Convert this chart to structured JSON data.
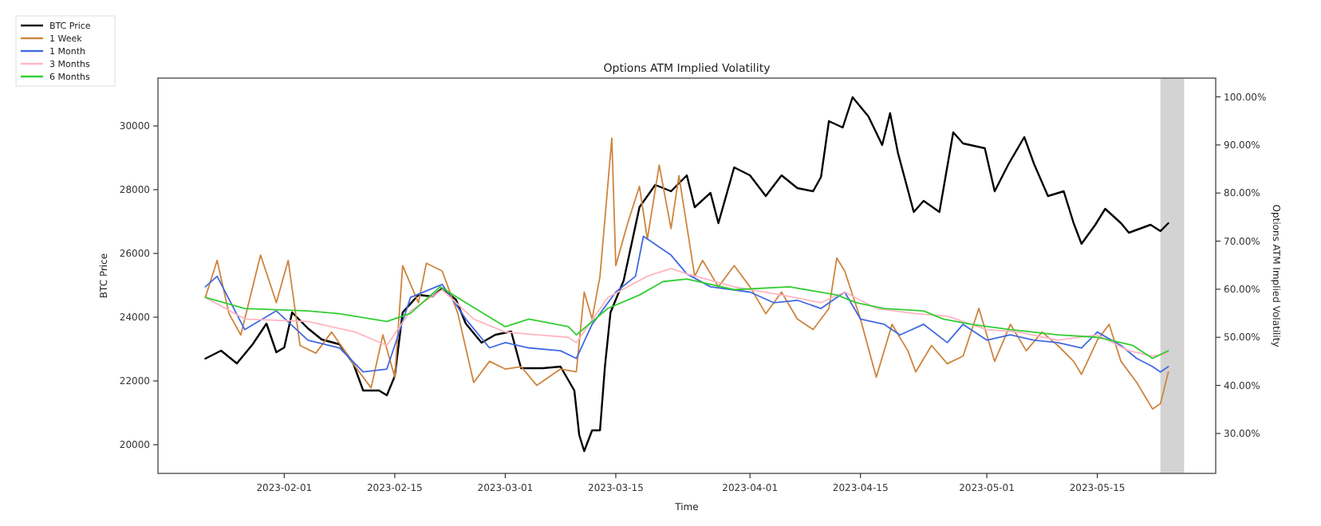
{
  "chart_data": {
    "type": "line",
    "title": "Options ATM Implied Volatility",
    "xlabel": "Time",
    "ylabel": "BTC Price",
    "y2label": "Options ATM Implied Volatility",
    "xlim": [
      "2023-01-16",
      "2023-05-30"
    ],
    "xticks": [
      "2023-02-01",
      "2023-02-15",
      "2023-03-01",
      "2023-03-15",
      "2023-04-01",
      "2023-04-15",
      "2023-05-01",
      "2023-05-15"
    ],
    "ylim": [
      19100,
      31500
    ],
    "yticks": [
      20000,
      22000,
      24000,
      26000,
      28000,
      30000
    ],
    "y2lim": [
      21.7,
      103.9
    ],
    "y2ticks": [
      {
        "value": 30,
        "label": "30.00%"
      },
      {
        "value": 40,
        "label": "40.00%"
      },
      {
        "value": 50,
        "label": "50.00%"
      },
      {
        "value": 60,
        "label": "60.00%"
      },
      {
        "value": 70,
        "label": "70.00%"
      },
      {
        "value": 80,
        "label": "80.00%"
      },
      {
        "value": 90,
        "label": "90.00%"
      },
      {
        "value": 100,
        "label": "100.00%"
      }
    ],
    "legend": "top left",
    "grid": false,
    "line_style": "solid",
    "marker": "none",
    "bands": [
      {
        "axis": "x",
        "from": "2023-05-23",
        "to": "2023-05-26",
        "color": "#d3d3d3"
      }
    ],
    "series": [
      {
        "name": "BTC Price",
        "color": "#000000",
        "x": [
          "2023-01-22",
          "2023-01-24",
          "2023-01-26",
          "2023-01-28",
          "2023-01-29T18:00",
          "2023-01-31",
          "2023-02-01",
          "2023-02-02",
          "2023-02-04",
          "2023-02-05T18:00",
          "2023-02-08",
          "2023-02-09T18:00",
          "2023-02-11",
          "2023-02-13",
          "2023-02-14",
          "2023-02-15",
          "2023-02-16",
          "2023-02-18",
          "2023-02-19T18:00",
          "2023-02-21",
          "2023-02-22T18:00",
          "2023-02-24",
          "2023-02-26",
          "2023-02-27T18:00",
          "2023-03-01T18:00",
          "2023-03-03",
          "2023-03-05T18:00",
          "2023-03-08",
          "2023-03-09T18:00",
          "2023-03-10T09:00",
          "2023-03-11",
          "2023-03-12",
          "2023-03-13",
          "2023-03-13T15:00",
          "2023-03-14T08:00",
          "2023-03-16",
          "2023-03-18",
          "2023-03-20",
          "2023-03-22",
          "2023-03-24",
          "2023-03-25",
          "2023-03-27",
          "2023-03-28",
          "2023-03-30",
          "2023-04-01",
          "2023-04-03",
          "2023-04-05",
          "2023-04-07",
          "2023-04-09",
          "2023-04-10",
          "2023-04-11",
          "2023-04-12T18:00",
          "2023-04-14",
          "2023-04-16",
          "2023-04-17T18:00",
          "2023-04-18T18:00",
          "2023-04-19T18:00",
          "2023-04-21T18:00",
          "2023-04-23",
          "2023-04-25",
          "2023-04-26T18:00",
          "2023-04-28",
          "2023-04-30T18:00",
          "2023-05-02",
          "2023-05-03T18:00",
          "2023-05-05T18:00",
          "2023-05-07",
          "2023-05-08T18:00",
          "2023-05-10T18:00",
          "2023-05-12",
          "2023-05-13",
          "2023-05-14T18:00",
          "2023-05-16",
          "2023-05-18",
          "2023-05-19",
          "2023-05-21T18:00",
          "2023-05-23",
          "2023-05-24"
        ],
        "values": [
          22700,
          22950,
          22550,
          23150,
          23800,
          22900,
          23050,
          24150,
          23650,
          23300,
          23150,
          22550,
          21700,
          21700,
          21550,
          22150,
          24150,
          24700,
          24650,
          24900,
          24550,
          23800,
          23200,
          23450,
          23550,
          22400,
          22400,
          22450,
          21700,
          20300,
          19800,
          20450,
          20450,
          22450,
          24150,
          25150,
          27450,
          28150,
          27950,
          28450,
          27450,
          27900,
          26950,
          28700,
          28450,
          27800,
          28450,
          28050,
          27950,
          28400,
          30150,
          29950,
          30900,
          30300,
          29400,
          30400,
          29150,
          27300,
          27650,
          27300,
          29800,
          29450,
          29300,
          27950,
          28800,
          29650,
          28800,
          27800,
          27950,
          26950,
          26300,
          26900,
          27400,
          26950,
          26650,
          26900,
          26700,
          26950
        ]
      },
      {
        "name": "1 Week",
        "color": "#cd853f",
        "axis": "y2",
        "x": [
          "2023-01-22",
          "2023-01-23T12:00",
          "2023-01-25",
          "2023-01-26T12:00",
          "2023-01-29",
          "2023-01-31",
          "2023-02-01T12:00",
          "2023-02-03",
          "2023-02-05",
          "2023-02-07",
          "2023-02-10",
          "2023-02-12",
          "2023-02-13T12:00",
          "2023-02-15",
          "2023-02-16",
          "2023-02-18",
          "2023-02-19",
          "2023-02-21",
          "2023-02-23",
          "2023-02-25",
          "2023-02-27",
          "2023-03-01",
          "2023-03-03",
          "2023-03-05",
          "2023-03-08",
          "2023-03-10",
          "2023-03-11",
          "2023-03-12",
          "2023-03-13",
          "2023-03-14T12:00",
          "2023-03-15",
          "2023-03-16T12:00",
          "2023-03-18",
          "2023-03-19",
          "2023-03-20T12:00",
          "2023-03-22",
          "2023-03-23",
          "2023-03-25",
          "2023-03-26",
          "2023-03-28",
          "2023-03-30",
          "2023-04-01",
          "2023-04-03",
          "2023-04-05",
          "2023-04-07",
          "2023-04-09",
          "2023-04-11",
          "2023-04-12",
          "2023-04-13",
          "2023-04-15",
          "2023-04-17",
          "2023-04-19",
          "2023-04-21",
          "2023-04-22",
          "2023-04-24",
          "2023-04-26",
          "2023-04-28",
          "2023-04-30",
          "2023-05-02",
          "2023-05-04",
          "2023-05-06",
          "2023-05-08",
          "2023-05-10",
          "2023-05-12",
          "2023-05-13",
          "2023-05-15",
          "2023-05-16T12:00",
          "2023-05-18",
          "2023-05-20",
          "2023-05-22",
          "2023-05-23",
          "2023-05-24"
        ],
        "values": [
          58.3,
          66,
          54.9,
          50.5,
          67.1,
          57.2,
          66,
          48.3,
          46.7,
          51.1,
          43.9,
          39.5,
          50.5,
          41.7,
          64.9,
          57.2,
          65.4,
          63.8,
          54.9,
          40.6,
          45,
          43.4,
          43.9,
          40,
          43.4,
          42.8,
          59.4,
          53.8,
          62.7,
          91.4,
          64.9,
          73.7,
          81.4,
          70.4,
          85.8,
          72.6,
          83.6,
          62.7,
          66,
          60.5,
          64.9,
          60.5,
          54.9,
          59.4,
          53.8,
          51.6,
          56,
          66.5,
          63.8,
          53.8,
          41.7,
          52.7,
          47.2,
          42.8,
          48.3,
          44.5,
          46.1,
          56,
          45,
          52.7,
          47.2,
          51.1,
          48.3,
          45,
          42.3,
          49.4,
          52.7,
          45,
          40.6,
          35.1,
          36.2,
          42.8
        ]
      },
      {
        "name": "1 Month",
        "color": "#4169e1",
        "axis": "y2",
        "x": [
          "2023-01-22",
          "2023-01-23T12:00",
          "2023-01-27",
          "2023-01-31",
          "2023-02-04",
          "2023-02-08",
          "2023-02-11",
          "2023-02-14",
          "2023-02-15",
          "2023-02-17",
          "2023-02-21",
          "2023-02-24",
          "2023-02-27",
          "2023-03-01",
          "2023-03-04",
          "2023-03-08",
          "2023-03-10",
          "2023-03-12",
          "2023-03-15",
          "2023-03-17T12:00",
          "2023-03-18T12:00",
          "2023-03-22",
          "2023-03-24",
          "2023-03-27",
          "2023-04-01",
          "2023-04-04",
          "2023-04-07",
          "2023-04-10",
          "2023-04-13",
          "2023-04-15",
          "2023-04-18",
          "2023-04-20",
          "2023-04-23",
          "2023-04-26",
          "2023-04-28",
          "2023-05-01",
          "2023-05-04",
          "2023-05-07",
          "2023-05-10",
          "2023-05-13",
          "2023-05-15",
          "2023-05-18",
          "2023-05-20",
          "2023-05-22",
          "2023-05-23",
          "2023-05-24"
        ],
        "values": [
          60.5,
          62.7,
          51.6,
          55.5,
          49.4,
          47.8,
          42.8,
          43.4,
          48.3,
          58.3,
          61,
          53.8,
          47.8,
          48.9,
          47.8,
          47.2,
          45.6,
          52.7,
          59.4,
          62.7,
          71,
          67.1,
          63.2,
          60.5,
          59.4,
          57.2,
          57.7,
          56,
          59.4,
          53.8,
          52.7,
          50.5,
          52.7,
          48.9,
          52.7,
          49.4,
          50.5,
          49.4,
          48.9,
          47.8,
          51.1,
          48.3,
          45.6,
          43.9,
          42.8,
          43.9
        ]
      },
      {
        "name": "3 Months",
        "color": "#ffb6c1",
        "axis": "y2",
        "x": [
          "2023-01-22",
          "2023-01-27",
          "2023-02-04",
          "2023-02-10",
          "2023-02-14",
          "2023-02-17",
          "2023-02-21",
          "2023-02-25",
          "2023-03-01",
          "2023-03-05",
          "2023-03-09",
          "2023-03-10",
          "2023-03-14",
          "2023-03-19",
          "2023-03-22",
          "2023-03-24",
          "2023-03-30",
          "2023-04-05",
          "2023-04-10",
          "2023-04-13",
          "2023-04-17",
          "2023-04-22",
          "2023-04-26",
          "2023-05-01",
          "2023-05-05",
          "2023-05-10",
          "2023-05-15",
          "2023-05-19",
          "2023-05-22",
          "2023-05-24"
        ],
        "values": [
          58.3,
          53.8,
          53.3,
          51.1,
          48.3,
          55.5,
          59.9,
          53.8,
          51.1,
          50.5,
          50,
          48.9,
          58.3,
          62.7,
          64.3,
          63.2,
          60.5,
          58.8,
          57.2,
          59.4,
          56,
          54.9,
          54.4,
          51.6,
          51.1,
          49.4,
          50.5,
          47.2,
          46.1,
          46.7
        ]
      },
      {
        "name": "6 Months",
        "color": "#32cd32",
        "axis": "y2",
        "x": [
          "2023-01-22",
          "2023-01-27",
          "2023-02-04",
          "2023-02-08",
          "2023-02-14",
          "2023-02-17",
          "2023-02-20T18:00",
          "2023-02-24",
          "2023-03-01",
          "2023-03-04",
          "2023-03-09",
          "2023-03-10",
          "2023-03-14",
          "2023-03-18",
          "2023-03-21",
          "2023-03-24",
          "2023-03-30",
          "2023-04-06",
          "2023-04-12",
          "2023-04-14T12:00",
          "2023-04-18",
          "2023-04-23",
          "2023-04-25T12:00",
          "2023-04-29",
          "2023-05-04",
          "2023-05-10",
          "2023-05-15",
          "2023-05-19T12:00",
          "2023-05-22",
          "2023-05-24"
        ],
        "values": [
          58.3,
          56,
          55.5,
          54.9,
          53.3,
          55,
          60.5,
          57.2,
          52.2,
          53.8,
          52.2,
          50.5,
          56,
          58.8,
          61.6,
          62.1,
          59.9,
          60.5,
          58.8,
          57.2,
          56,
          55.5,
          53.8,
          52.7,
          51.6,
          50.5,
          50,
          48.3,
          45.6,
          47.2
        ]
      }
    ]
  }
}
